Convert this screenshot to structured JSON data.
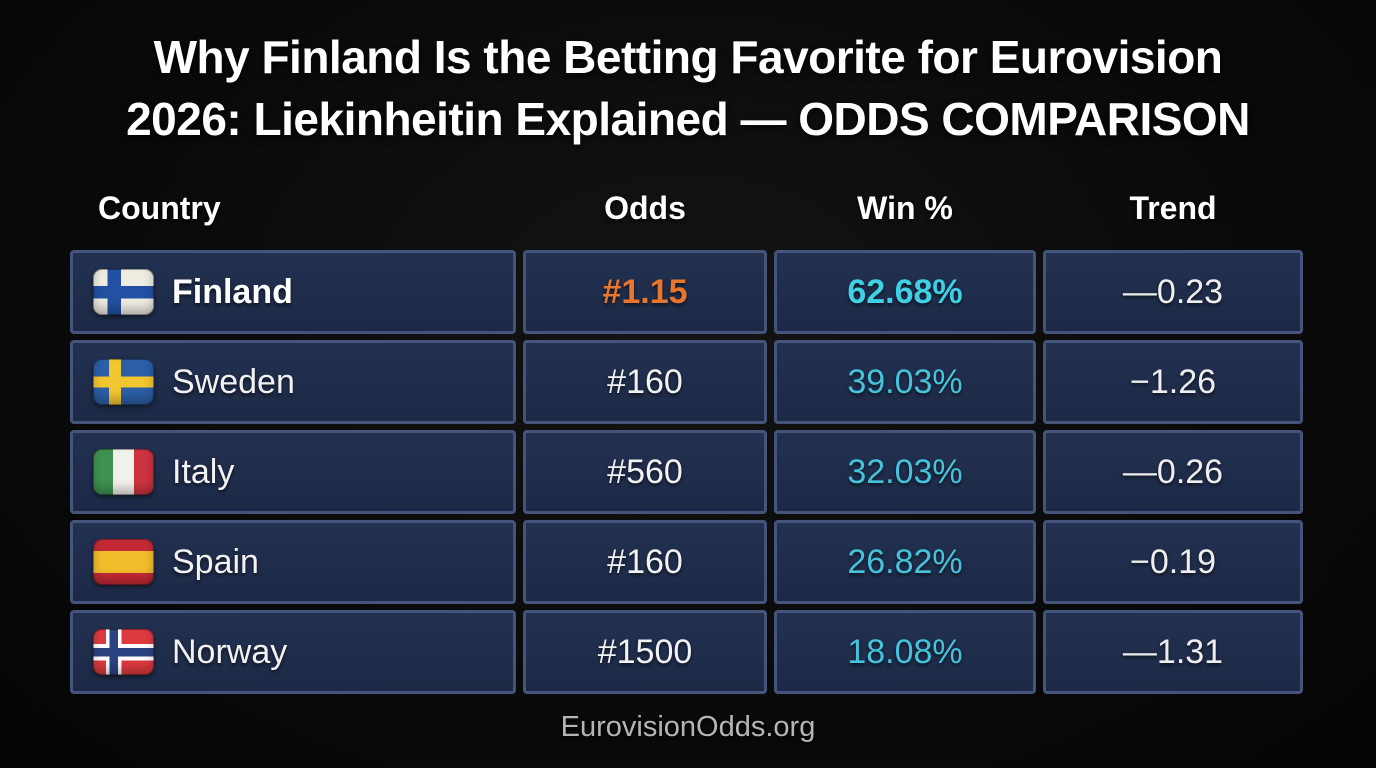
{
  "page": {
    "title_line1": "Why Finland Is the Betting Favorite for Eurovision",
    "title_line2": "2026: Liekinheitin Explained — ODDS COMPARISON",
    "footer": "EurovisionOdds.org"
  },
  "colors": {
    "background": "#0a0a0a",
    "cell_background": "#1e2b49",
    "cell_border": "#44547a",
    "favorite_odds_orange": "#e8762c",
    "win_percent_cyan": "#45c3da",
    "text_white": "#ffffff"
  },
  "table": {
    "headers": [
      "Country",
      "Odds",
      "Win %",
      "Trend"
    ],
    "rows": [
      {
        "country": "Finland",
        "flag": "fi",
        "flag_name": "finland-flag",
        "odds": "#1.15",
        "win": "62.68%",
        "trend": "—0.23",
        "highlight": true
      },
      {
        "country": "Sweden",
        "flag": "se",
        "flag_name": "sweden-flag",
        "odds": "#160",
        "win": "39.03%",
        "trend": "−1.26",
        "highlight": false
      },
      {
        "country": "Italy",
        "flag": "it",
        "flag_name": "italy-flag",
        "odds": "#560",
        "win": "32.03%",
        "trend": "—0.26",
        "highlight": false
      },
      {
        "country": "Spain",
        "flag": "es",
        "flag_name": "spain-flag",
        "odds": "#160",
        "win": "26.82%",
        "trend": "−0.19",
        "highlight": false
      },
      {
        "country": "Norway",
        "flag": "no",
        "flag_name": "norway-flag",
        "odds": "#1500",
        "win": "18.08%",
        "trend": "—1.31",
        "highlight": false
      }
    ]
  },
  "chart_data": {
    "type": "table",
    "title": "Why Finland Is the Betting Favorite for Eurovision 2026: Liekinheitin Explained — ODDS COMPARISON",
    "columns": [
      "Country",
      "Odds",
      "Win %",
      "Trend"
    ],
    "rows": [
      [
        "Finland",
        "#1.15",
        62.68,
        -0.23
      ],
      [
        "Sweden",
        "#160",
        39.03,
        -1.26
      ],
      [
        "Italy",
        "#560",
        32.03,
        -0.26
      ],
      [
        "Spain",
        "#160",
        26.82,
        -0.19
      ],
      [
        "Norway",
        "#1500",
        18.08,
        -1.31
      ]
    ],
    "legend_position": "none",
    "source": "EurovisionOdds.org"
  }
}
